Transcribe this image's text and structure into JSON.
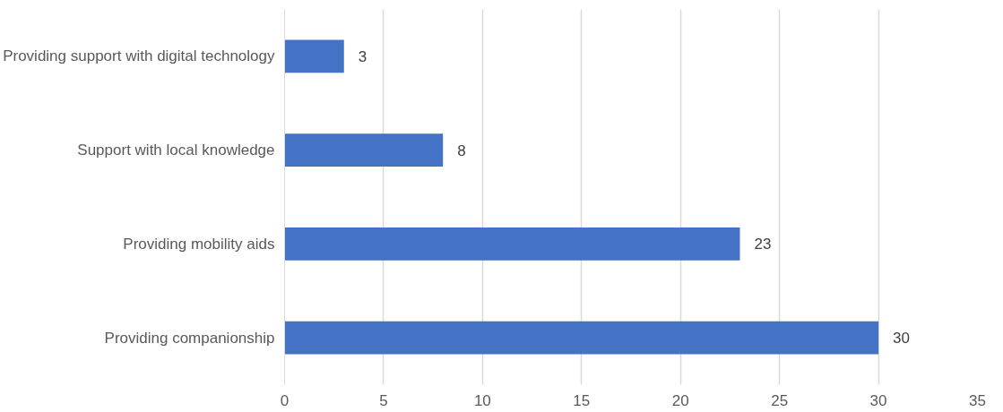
{
  "chart_data": {
    "type": "bar",
    "orientation": "horizontal",
    "categories": [
      "Providing support with digital technology",
      "Support with local knowledge",
      "Providing mobility aids",
      "Providing companionship"
    ],
    "values": [
      3,
      8,
      23,
      30
    ],
    "color": "#4472c4",
    "xlim": [
      0,
      35
    ],
    "xticks": [
      0,
      5,
      10,
      15,
      20,
      25,
      30,
      35
    ],
    "grid": "x",
    "data_labels": true
  }
}
